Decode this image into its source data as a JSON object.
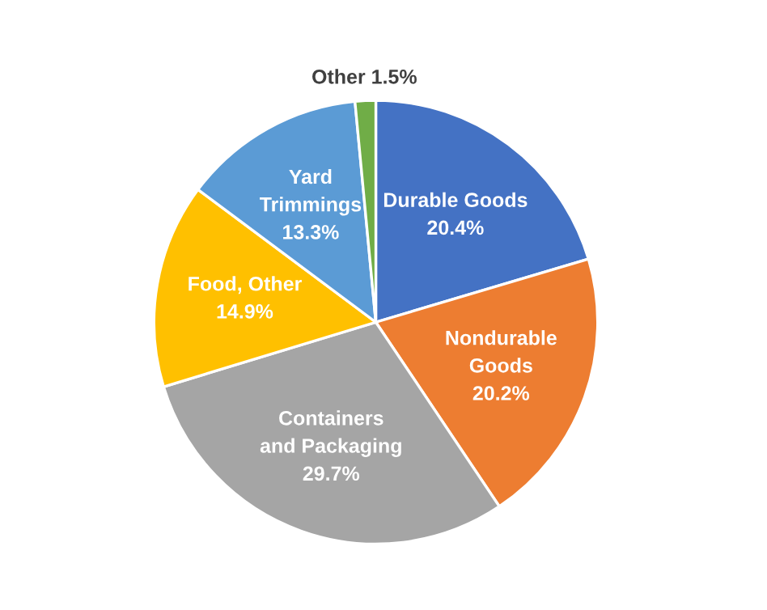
{
  "chart_data": {
    "type": "pie",
    "categories": [
      "Durable Goods",
      "Nondurable Goods",
      "Containers and Packaging",
      "Food, Other",
      "Yard Trimmings",
      "Other"
    ],
    "values": [
      20.4,
      20.2,
      29.7,
      14.9,
      13.3,
      1.5
    ],
    "value_labels": [
      "20.4%",
      "20.2%",
      "29.7%",
      "14.9%",
      "13.3%",
      "1.5%"
    ],
    "colors": [
      "#4472c4",
      "#ed7d31",
      "#a5a5a5",
      "#ffc000",
      "#5b9bd5",
      "#70ad47"
    ],
    "legend": false
  }
}
